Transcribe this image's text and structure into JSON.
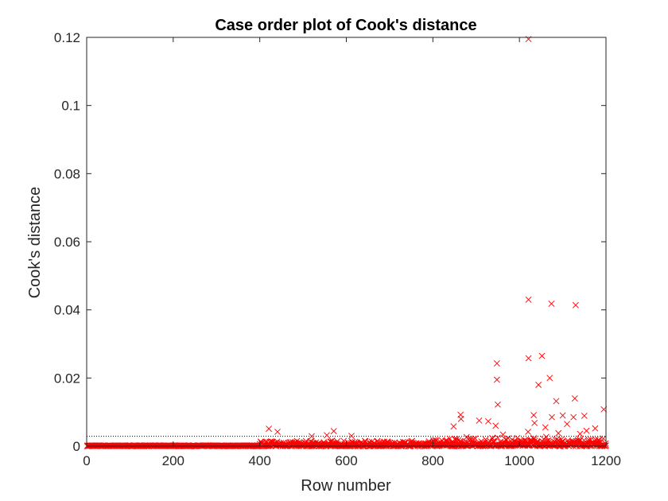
{
  "chart_data": {
    "type": "scatter",
    "title": "Case order plot of Cook's distance",
    "xlabel": "Row number",
    "ylabel": "Cook's distance",
    "xlim": [
      0,
      1200
    ],
    "ylim": [
      0,
      0.12
    ],
    "xticks": [
      "0",
      "200",
      "400",
      "600",
      "800",
      "1000",
      "1200"
    ],
    "yticks": [
      "0",
      "0.02",
      "0.04",
      "0.06",
      "0.08",
      "0.1",
      "0.12"
    ],
    "grid": false,
    "marker": "x",
    "marker_color": "#ff0000",
    "threshold_line": {
      "y": 0.0029,
      "style": "dotted",
      "color": "#000000"
    },
    "notable_points": [
      {
        "x": 1021,
        "y": 0.1195
      },
      {
        "x": 1021,
        "y": 0.043
      },
      {
        "x": 1074,
        "y": 0.0418
      },
      {
        "x": 1130,
        "y": 0.0414
      },
      {
        "x": 1021,
        "y": 0.0258
      },
      {
        "x": 1052,
        "y": 0.0265
      },
      {
        "x": 948,
        "y": 0.0243
      },
      {
        "x": 948,
        "y": 0.0195
      },
      {
        "x": 1070,
        "y": 0.02
      },
      {
        "x": 1044,
        "y": 0.018
      },
      {
        "x": 1128,
        "y": 0.014
      },
      {
        "x": 1085,
        "y": 0.0132
      },
      {
        "x": 950,
        "y": 0.0122
      },
      {
        "x": 1195,
        "y": 0.0108
      },
      {
        "x": 864,
        "y": 0.0092
      },
      {
        "x": 1033,
        "y": 0.0091
      },
      {
        "x": 1100,
        "y": 0.009
      },
      {
        "x": 1150,
        "y": 0.0089
      },
      {
        "x": 1075,
        "y": 0.0085
      },
      {
        "x": 1125,
        "y": 0.0085
      },
      {
        "x": 865,
        "y": 0.008
      },
      {
        "x": 907,
        "y": 0.0075
      },
      {
        "x": 928,
        "y": 0.0073
      },
      {
        "x": 1035,
        "y": 0.0068
      },
      {
        "x": 1110,
        "y": 0.0065
      },
      {
        "x": 945,
        "y": 0.006
      },
      {
        "x": 848,
        "y": 0.0058
      },
      {
        "x": 1060,
        "y": 0.0055
      },
      {
        "x": 1175,
        "y": 0.0052
      },
      {
        "x": 421,
        "y": 0.0051
      },
      {
        "x": 1155,
        "y": 0.0045
      },
      {
        "x": 441,
        "y": 0.0042
      },
      {
        "x": 571,
        "y": 0.0044
      },
      {
        "x": 1020,
        "y": 0.0042
      },
      {
        "x": 1090,
        "y": 0.0038
      },
      {
        "x": 1140,
        "y": 0.0036
      },
      {
        "x": 962,
        "y": 0.0034
      },
      {
        "x": 555,
        "y": 0.0032
      },
      {
        "x": 612,
        "y": 0.003
      },
      {
        "x": 520,
        "y": 0.0029
      }
    ],
    "bulk_points_note": "Dense band of markers near 0 across all 1200 rows, rising to about 0.003 after row 800"
  }
}
